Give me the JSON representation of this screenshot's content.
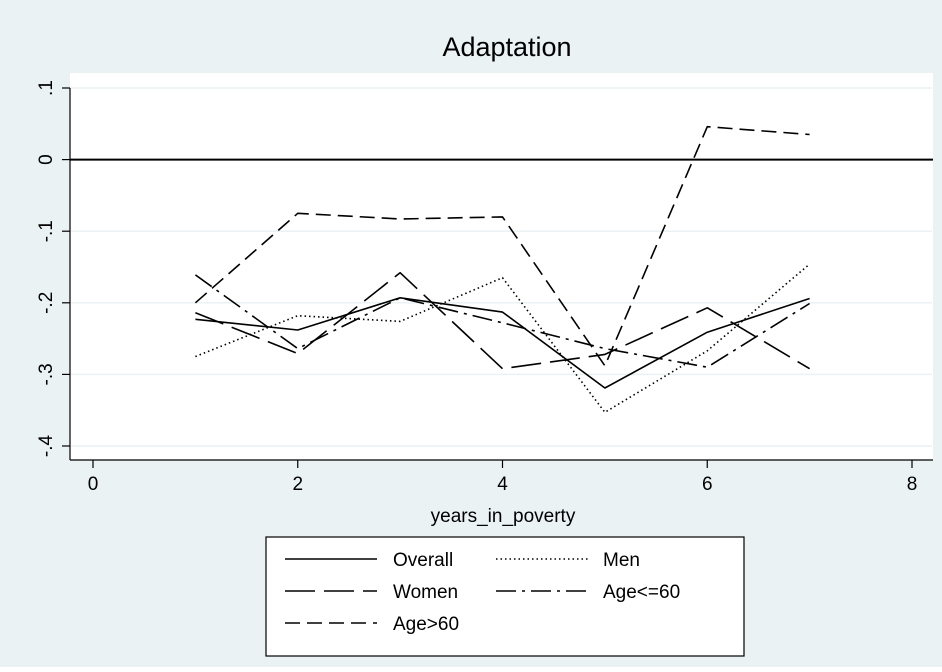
{
  "chart_data": {
    "type": "line",
    "title": "Adaptation",
    "xlabel": "years_in_poverty",
    "ylabel": "",
    "xlim": [
      0,
      8
    ],
    "ylim": [
      -0.42,
      0.1
    ],
    "x_ticks": [
      0,
      2,
      4,
      6,
      8
    ],
    "x_tick_labels": [
      "0",
      "2",
      "4",
      "6",
      "8"
    ],
    "y_ticks": [
      0.1,
      0,
      -0.1,
      -0.2,
      -0.3,
      -0.4
    ],
    "y_tick_labels": [
      ".1",
      "0",
      "-.1",
      "-.2",
      "-.3",
      "-.4"
    ],
    "reference_line_y": 0,
    "grid": true,
    "legend_position": "bottom",
    "x": [
      1,
      2,
      3,
      4,
      5,
      6,
      7
    ],
    "series": [
      {
        "name": "Overall",
        "dash": "solid",
        "values": [
          -0.223,
          -0.238,
          -0.193,
          -0.213,
          -0.319,
          -0.241,
          -0.194
        ]
      },
      {
        "name": "Men",
        "dash": "dotted",
        "values": [
          -0.275,
          -0.218,
          -0.226,
          -0.165,
          -0.353,
          -0.267,
          -0.146
        ]
      },
      {
        "name": "Women",
        "dash": "longdash",
        "values": [
          -0.214,
          -0.271,
          -0.158,
          -0.292,
          -0.272,
          -0.207,
          -0.292
        ]
      },
      {
        "name": "Age<=60",
        "dash": "longdashdot",
        "values": [
          -0.161,
          -0.264,
          -0.193,
          -0.228,
          -0.264,
          -0.29,
          -0.201
        ]
      },
      {
        "name": "Age>60",
        "dash": "dash",
        "values": [
          -0.2,
          -0.075,
          -0.083,
          -0.08,
          -0.288,
          0.046,
          0.035
        ]
      }
    ],
    "colors": {
      "background": "#eaf2f3",
      "plot_background": "#ffffff",
      "grid": "#eaf2f3",
      "line": "#000000"
    }
  }
}
